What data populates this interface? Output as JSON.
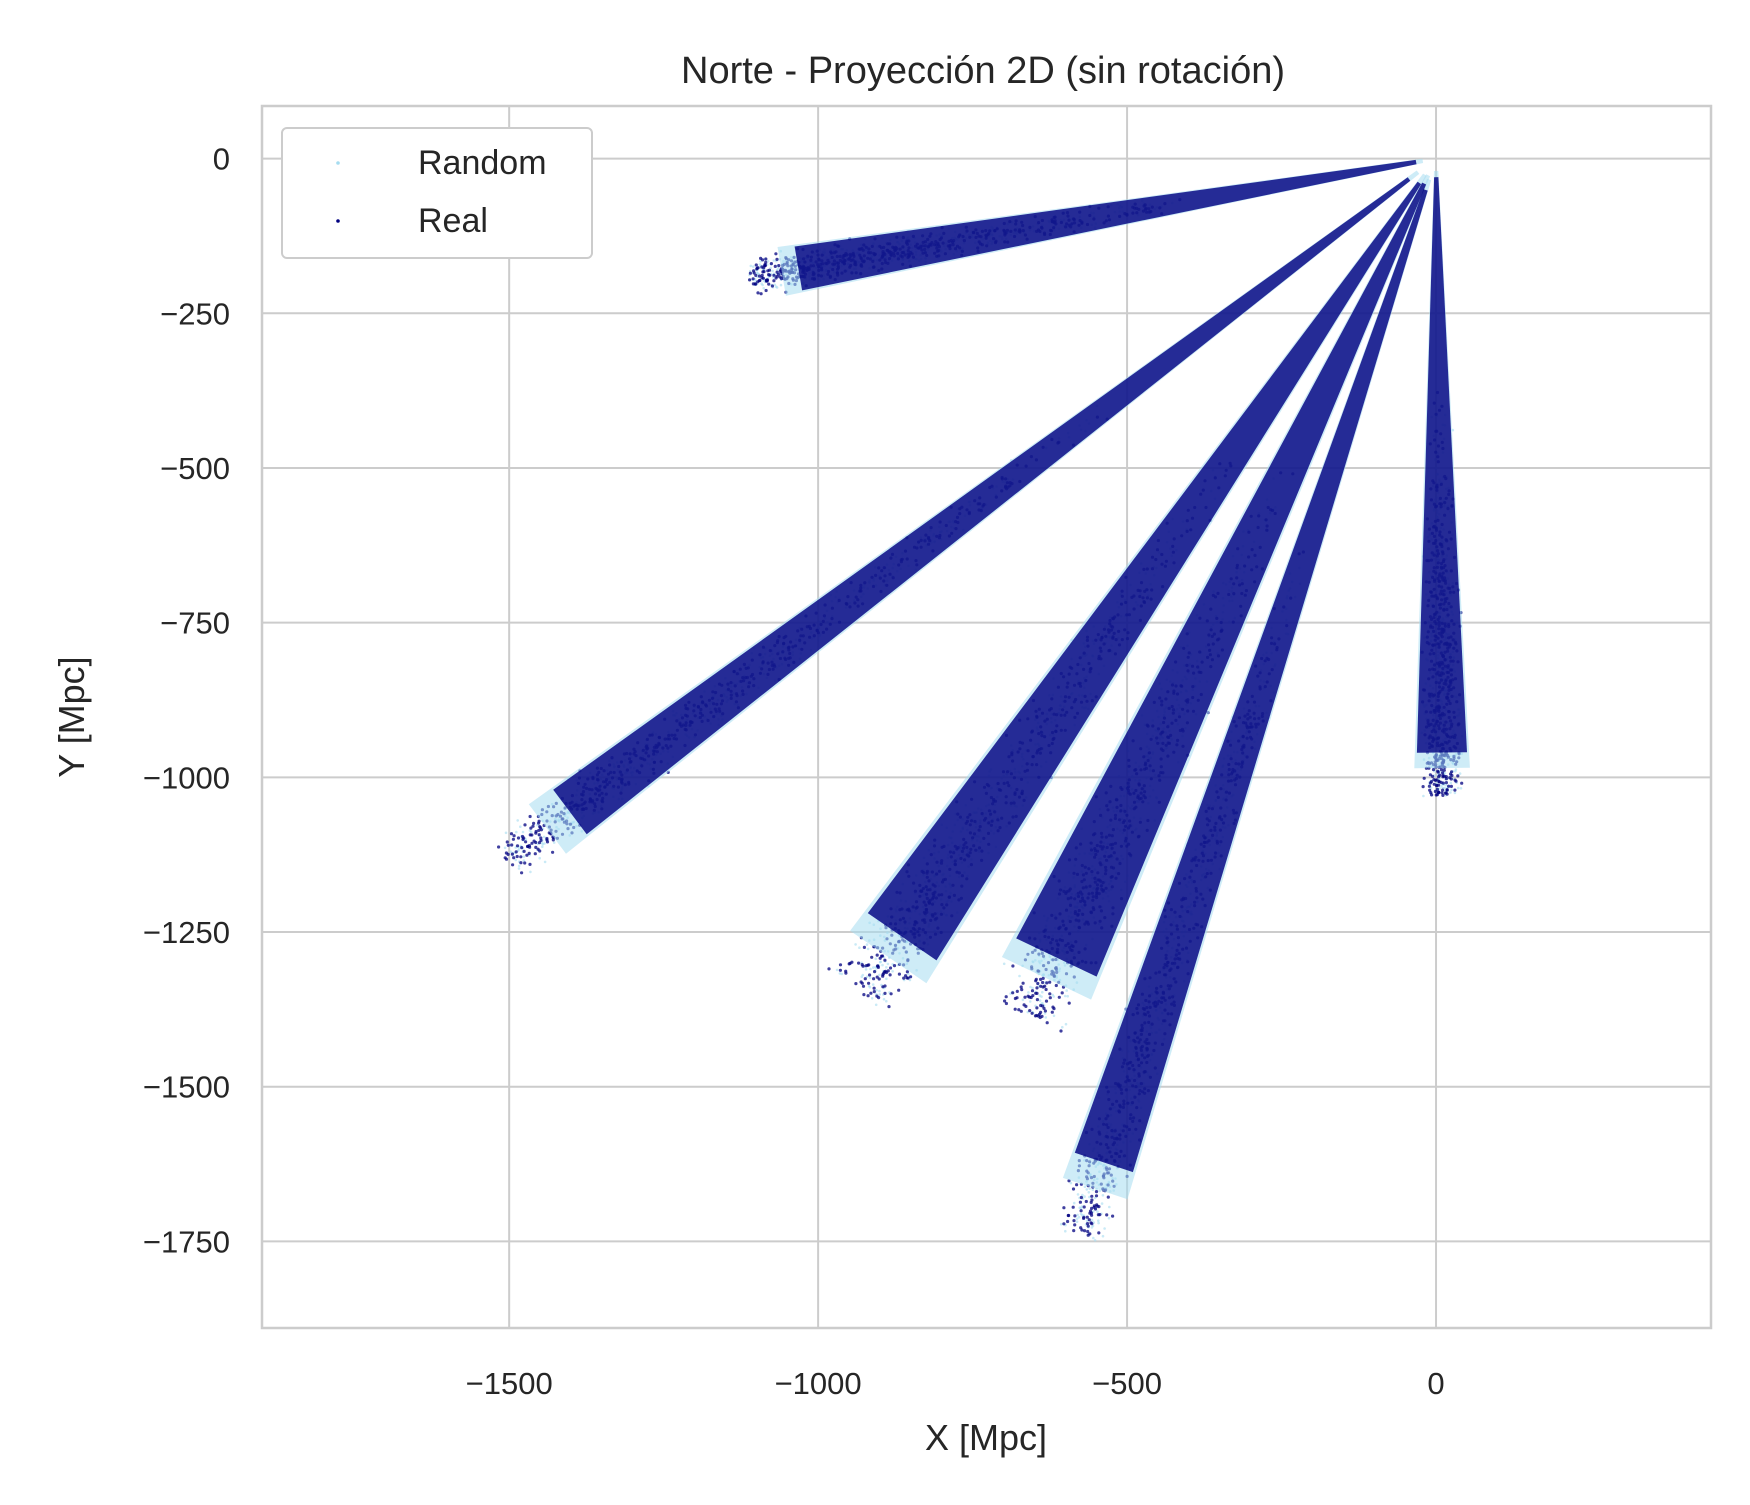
{
  "chart_data": {
    "type": "scatter",
    "title": "Norte - Proyección 2D (sin rotación)",
    "xlabel": "X [Mpc]",
    "ylabel": "Y [Mpc]",
    "xlim": [
      -1900,
      445
    ],
    "ylim": [
      -1890,
      85
    ],
    "xticks": [
      -1500,
      -1000,
      -500,
      0
    ],
    "xtick_labels": [
      "−1500",
      "−1000",
      "−500",
      "0"
    ],
    "yticks": [
      0,
      -250,
      -500,
      -750,
      -1000,
      -1250,
      -1500,
      -1750
    ],
    "ytick_labels": [
      "0",
      "−250",
      "−500",
      "−750",
      "−1000",
      "−1250",
      "−1500",
      "−1750"
    ],
    "grid": true,
    "legend_position": "top-left",
    "legend": [
      {
        "label": "Random",
        "color": "#a6dcf0"
      },
      {
        "label": "Real",
        "color": "#000080"
      }
    ],
    "origin": [
      0,
      0
    ],
    "series": [
      {
        "name": "Random",
        "color": "#a6dcf0",
        "wedges": [
          {
            "tip": [
              -1075,
              -185
            ],
            "near_half_width": 5,
            "far_half_width": 40
          },
          {
            "tip": [
              -1460,
              -1100
            ],
            "near_half_width": 5,
            "far_half_width": 50
          },
          {
            "tip": [
              -900,
              -1310
            ],
            "near_half_width": 5,
            "far_half_width": 75
          },
          {
            "tip": [
              -640,
              -1345
            ],
            "near_half_width": 5,
            "far_half_width": 80
          },
          {
            "tip": [
              -560,
              -1690
            ],
            "near_half_width": 5,
            "far_half_width": 55
          },
          {
            "tip": [
              10,
              -1000
            ],
            "near_half_width": 5,
            "far_half_width": 45
          }
        ]
      },
      {
        "name": "Real",
        "color": "#000080",
        "wedges": [
          {
            "tip": [
              -1075,
              -185
            ],
            "near_half_width": 5,
            "far_half_width": 40
          },
          {
            "tip": [
              -1460,
              -1100
            ],
            "near_half_width": 5,
            "far_half_width": 50
          },
          {
            "tip": [
              -900,
              -1310
            ],
            "near_half_width": 5,
            "far_half_width": 75
          },
          {
            "tip": [
              -640,
              -1345
            ],
            "near_half_width": 5,
            "far_half_width": 80
          },
          {
            "tip": [
              -560,
              -1690
            ],
            "near_half_width": 5,
            "far_half_width": 55
          },
          {
            "tip": [
              10,
              -1000
            ],
            "near_half_width": 5,
            "far_half_width": 45
          }
        ]
      }
    ]
  }
}
